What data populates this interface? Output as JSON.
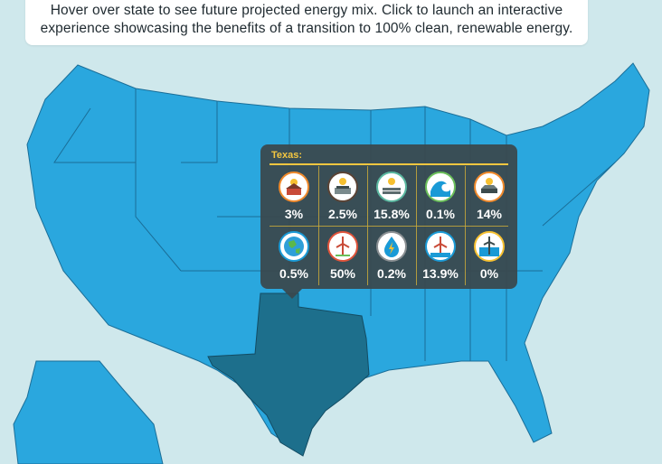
{
  "instruction": "Hover over state to see future projected energy mix. Click to launch an interactive experience showcasing the benefits of a transition to 100% clean, renewable energy.",
  "tooltip": {
    "state": "Texas:",
    "items": [
      {
        "icon": "rooftop-solar-icon",
        "value": "3%"
      },
      {
        "icon": "commercial-solar-icon",
        "value": "2.5%"
      },
      {
        "icon": "solar-pv-plant-icon",
        "value": "15.8%"
      },
      {
        "icon": "wave-power-icon",
        "value": "0.1%"
      },
      {
        "icon": "csp-plant-icon",
        "value": "14%"
      },
      {
        "icon": "geothermal-icon",
        "value": "0.5%"
      },
      {
        "icon": "onshore-wind-icon",
        "value": "50%"
      },
      {
        "icon": "hydroelectric-icon",
        "value": "0.2%"
      },
      {
        "icon": "offshore-wind-icon",
        "value": "13.9%"
      },
      {
        "icon": "tidal-turbine-icon",
        "value": "0%"
      }
    ]
  },
  "colors": {
    "background": "#cfe8ec",
    "state_fill": "#2aa7de",
    "state_border": "#1a6e98",
    "highlight_fill": "#1d6f8c",
    "tooltip_bg": "#3a484e",
    "accent": "#f3c640"
  }
}
